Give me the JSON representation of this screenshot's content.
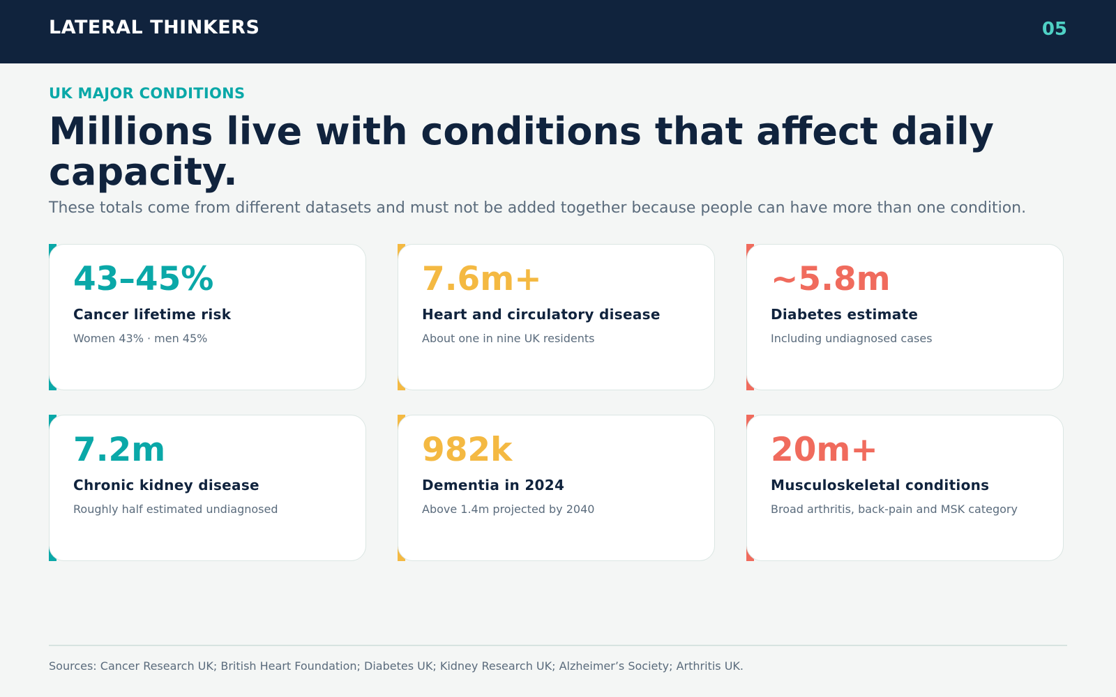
{
  "header": {
    "brand": "LATERAL THINKERS",
    "page_number": "05"
  },
  "intro": {
    "eyebrow": "UK MAJOR CONDITIONS",
    "headline": "Millions live with conditions that affect daily capacity.",
    "subhead": "These totals come from different datasets and must not be added together because people can have more than one condition."
  },
  "colors": {
    "navy": "#10233d",
    "teal": "#0aa8a8",
    "amber": "#f4b942",
    "coral": "#f06b5d"
  },
  "cards": [
    {
      "value": "43–45%",
      "title": "Cancer lifetime risk",
      "note": "Women 43% · men 45%"
    },
    {
      "value": "7.6m+",
      "title": "Heart and circulatory disease",
      "note": "About one in nine UK residents"
    },
    {
      "value": "~5.8m",
      "title": "Diabetes estimate",
      "note": "Including undiagnosed cases"
    },
    {
      "value": "7.2m",
      "title": "Chronic kidney disease",
      "note": "Roughly half estimated undiagnosed"
    },
    {
      "value": "982k",
      "title": "Dementia in 2024",
      "note": "Above 1.4m projected by 2040"
    },
    {
      "value": "20m+",
      "title": "Musculoskeletal conditions",
      "note": "Broad arthritis, back-pain and MSK category"
    }
  ],
  "footer": {
    "sources": "Sources: Cancer Research UK; British Heart Foundation; Diabetes UK; Kidney Research UK; Alzheimer’s Society; Arthritis UK."
  }
}
